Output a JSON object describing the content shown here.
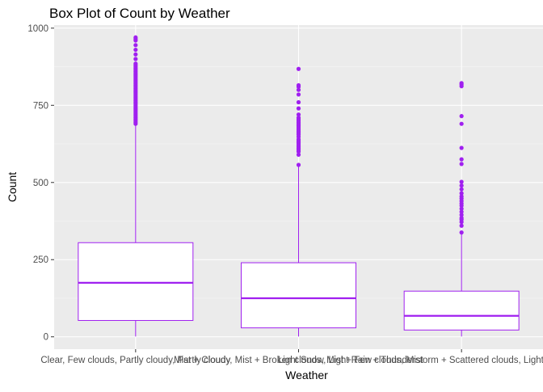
{
  "chart_data": {
    "type": "box",
    "title": "Box Plot of Count by Weather",
    "xlabel": "Weather",
    "ylabel": "Count",
    "ylim": [
      -40,
      1010
    ],
    "yticks": [
      0,
      250,
      500,
      750,
      1000
    ],
    "grid": true,
    "colors": {
      "panel_bg": "#ebebeb",
      "grid_major": "#ffffff",
      "box_stroke": "#a020f0",
      "outlier": "#a020f0",
      "box_fill": "#ffffff"
    },
    "categories": [
      "Clear, Few clouds, Partly cloudy, Partly cloudy",
      "Mist + Cloudy, Mist + Broken clouds, Mist + Few clouds, Mist",
      "Light Snow, Light Rain + Thunderstorm + Scattered clouds, Light Rain + Scattered clouds"
    ],
    "boxes": [
      {
        "whisker_low": 1,
        "q1": 53,
        "median": 175,
        "q3": 305,
        "whisker_high": 688,
        "outliers": [
          690,
          695,
          700,
          705,
          710,
          715,
          720,
          725,
          730,
          735,
          740,
          745,
          750,
          755,
          760,
          765,
          770,
          775,
          780,
          785,
          790,
          795,
          800,
          805,
          810,
          815,
          820,
          825,
          830,
          835,
          840,
          845,
          850,
          855,
          860,
          865,
          870,
          875,
          880,
          885,
          900,
          915,
          930,
          945,
          960,
          965,
          970
        ]
      },
      {
        "whisker_low": 1,
        "q1": 29,
        "median": 125,
        "q3": 240,
        "whisker_high": 555,
        "outliers": [
          557,
          590,
          600,
          605,
          610,
          615,
          620,
          625,
          630,
          635,
          640,
          648,
          655,
          660,
          665,
          670,
          675,
          680,
          685,
          690,
          695,
          700,
          705,
          710,
          720,
          740,
          760,
          785,
          800,
          810,
          815,
          868
        ]
      },
      {
        "whisker_low": 1,
        "q1": 22,
        "median": 68,
        "q3": 148,
        "whisker_high": 336,
        "outliers": [
          338,
          360,
          372,
          380,
          385,
          395,
          405,
          415,
          425,
          432,
          440,
          448,
          455,
          465,
          478,
          490,
          502,
          560,
          575,
          612,
          690,
          715,
          812,
          818,
          822
        ]
      }
    ]
  }
}
